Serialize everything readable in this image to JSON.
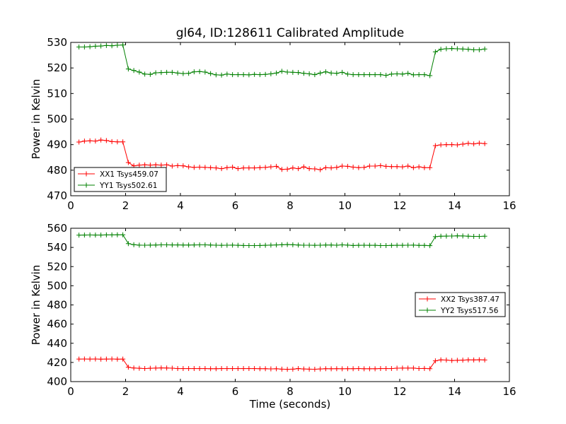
{
  "figure": {
    "title": "gl64, ID:128611 Calibrated Amplitude"
  },
  "chart_data": [
    {
      "type": "line",
      "title": "gl64, ID:128611 Calibrated Amplitude",
      "xlabel": "",
      "ylabel": "Power in Kelvin",
      "xlim": [
        0,
        16
      ],
      "ylim": [
        470,
        530
      ],
      "xticks": [
        0,
        2,
        4,
        6,
        8,
        10,
        12,
        14,
        16
      ],
      "yticks": [
        470,
        480,
        490,
        500,
        510,
        520,
        530
      ],
      "legend_position": "lower-left",
      "series": [
        {
          "name": "XX1 Tsys459.07",
          "color": "#ff0000",
          "x": [
            0.3,
            0.5,
            0.7,
            0.9,
            1.1,
            1.3,
            1.5,
            1.7,
            1.9,
            2.1,
            2.3,
            2.5,
            2.7,
            2.9,
            3.1,
            3.3,
            3.5,
            3.7,
            3.9,
            4.1,
            4.3,
            4.5,
            4.7,
            4.9,
            5.1,
            5.3,
            5.5,
            5.7,
            5.9,
            6.1,
            6.3,
            6.5,
            6.7,
            6.9,
            7.1,
            7.3,
            7.5,
            7.7,
            7.9,
            8.1,
            8.3,
            8.5,
            8.7,
            8.9,
            9.1,
            9.3,
            9.5,
            9.7,
            9.9,
            10.1,
            10.3,
            10.5,
            10.7,
            10.9,
            11.1,
            11.3,
            11.5,
            11.7,
            11.9,
            12.1,
            12.3,
            12.5,
            12.7,
            12.9,
            13.1,
            13.3,
            13.5,
            13.7,
            13.9,
            14.1,
            14.3,
            14.5,
            14.7,
            14.9,
            15.1
          ],
          "y": [
            491.0,
            491.4,
            491.5,
            491.4,
            491.8,
            491.6,
            491.2,
            491.1,
            491.1,
            483.0,
            481.7,
            482.0,
            482.1,
            482.0,
            482.1,
            482.0,
            482.1,
            481.6,
            481.8,
            481.7,
            481.3,
            481.1,
            481.2,
            481.1,
            481.0,
            480.9,
            480.6,
            481.0,
            481.2,
            480.6,
            480.9,
            480.9,
            480.9,
            481.0,
            481.1,
            481.3,
            481.5,
            480.3,
            480.4,
            480.9,
            480.6,
            481.3,
            480.6,
            480.5,
            480.2,
            481.0,
            480.9,
            481.1,
            481.6,
            481.5,
            481.2,
            481.0,
            481.1,
            481.6,
            481.6,
            481.8,
            481.5,
            481.4,
            481.4,
            481.3,
            481.6,
            481.0,
            481.3,
            481.0,
            481.0,
            489.6,
            489.9,
            490.0,
            490.0,
            489.9,
            490.2,
            490.5,
            490.3,
            490.6,
            490.4
          ]
        },
        {
          "name": "YY1 Tsys502.61",
          "color": "#008000",
          "x": [
            0.3,
            0.5,
            0.7,
            0.9,
            1.1,
            1.3,
            1.5,
            1.7,
            1.9,
            2.1,
            2.3,
            2.5,
            2.7,
            2.9,
            3.1,
            3.3,
            3.5,
            3.7,
            3.9,
            4.1,
            4.3,
            4.5,
            4.7,
            4.9,
            5.1,
            5.3,
            5.5,
            5.7,
            5.9,
            6.1,
            6.3,
            6.5,
            6.7,
            6.9,
            7.1,
            7.3,
            7.5,
            7.7,
            7.9,
            8.1,
            8.3,
            8.5,
            8.7,
            8.9,
            9.1,
            9.3,
            9.5,
            9.7,
            9.9,
            10.1,
            10.3,
            10.5,
            10.7,
            10.9,
            11.1,
            11.3,
            11.5,
            11.7,
            11.9,
            12.1,
            12.3,
            12.5,
            12.7,
            12.9,
            13.1,
            13.3,
            13.5,
            13.7,
            13.9,
            14.1,
            14.3,
            14.5,
            14.7,
            14.9,
            15.1
          ],
          "y": [
            528.2,
            528.2,
            528.3,
            528.5,
            528.6,
            528.8,
            528.7,
            528.9,
            529.0,
            519.6,
            519.0,
            518.4,
            517.6,
            517.5,
            518.1,
            518.2,
            518.3,
            518.3,
            518.0,
            517.8,
            517.9,
            518.5,
            518.6,
            518.4,
            517.8,
            517.3,
            517.2,
            517.6,
            517.4,
            517.4,
            517.4,
            517.3,
            517.5,
            517.4,
            517.5,
            517.7,
            518.0,
            518.7,
            518.4,
            518.3,
            518.2,
            517.9,
            517.7,
            517.4,
            518.0,
            518.5,
            518.0,
            517.9,
            518.3,
            517.6,
            517.4,
            517.4,
            517.4,
            517.4,
            517.4,
            517.4,
            517.1,
            517.6,
            517.7,
            517.6,
            517.9,
            517.3,
            517.4,
            517.4,
            517.0,
            526.3,
            527.3,
            527.5,
            527.6,
            527.5,
            527.4,
            527.3,
            527.1,
            527.1,
            527.4
          ]
        }
      ]
    },
    {
      "type": "line",
      "title": "",
      "xlabel": "Time (seconds)",
      "ylabel": "Power in Kelvin",
      "xlim": [
        0,
        16
      ],
      "ylim": [
        400,
        560
      ],
      "xticks": [
        0,
        2,
        4,
        6,
        8,
        10,
        12,
        14,
        16
      ],
      "yticks": [
        400,
        420,
        440,
        460,
        480,
        500,
        520,
        540,
        560
      ],
      "legend_position": "center-right",
      "series": [
        {
          "name": "XX2 Tsys387.47",
          "color": "#ff0000",
          "x": [
            0.3,
            0.5,
            0.7,
            0.9,
            1.1,
            1.3,
            1.5,
            1.7,
            1.9,
            2.1,
            2.3,
            2.5,
            2.7,
            2.9,
            3.1,
            3.3,
            3.5,
            3.7,
            3.9,
            4.1,
            4.3,
            4.5,
            4.7,
            4.9,
            5.1,
            5.3,
            5.5,
            5.7,
            5.9,
            6.1,
            6.3,
            6.5,
            6.7,
            6.9,
            7.1,
            7.3,
            7.5,
            7.7,
            7.9,
            8.1,
            8.3,
            8.5,
            8.7,
            8.9,
            9.1,
            9.3,
            9.5,
            9.7,
            9.9,
            10.1,
            10.3,
            10.5,
            10.7,
            10.9,
            11.1,
            11.3,
            11.5,
            11.7,
            11.9,
            12.1,
            12.3,
            12.5,
            12.7,
            12.9,
            13.1,
            13.3,
            13.5,
            13.7,
            13.9,
            14.1,
            14.3,
            14.5,
            14.7,
            14.9,
            15.1
          ],
          "y": [
            423.5,
            423.6,
            423.5,
            423.6,
            423.4,
            423.5,
            423.6,
            423.4,
            423.5,
            415.0,
            414.2,
            413.9,
            413.6,
            413.9,
            414.1,
            414.3,
            414.2,
            414.0,
            413.6,
            413.6,
            413.6,
            413.6,
            413.6,
            413.6,
            413.5,
            413.5,
            413.6,
            413.6,
            413.6,
            413.6,
            413.6,
            413.6,
            413.6,
            413.5,
            413.5,
            413.3,
            413.4,
            413.0,
            412.8,
            413.0,
            413.6,
            413.2,
            413.0,
            412.9,
            413.2,
            413.5,
            413.4,
            413.5,
            413.4,
            413.5,
            413.5,
            413.6,
            413.4,
            413.4,
            413.4,
            413.6,
            413.6,
            413.6,
            414.0,
            414.1,
            414.1,
            414.1,
            413.6,
            413.7,
            413.5,
            421.7,
            422.7,
            422.5,
            422.0,
            422.2,
            422.4,
            422.7,
            422.6,
            422.8,
            422.6
          ]
        },
        {
          "name": "YY2 Tsys517.56",
          "color": "#008000",
          "x": [
            0.3,
            0.5,
            0.7,
            0.9,
            1.1,
            1.3,
            1.5,
            1.7,
            1.9,
            2.1,
            2.3,
            2.5,
            2.7,
            2.9,
            3.1,
            3.3,
            3.5,
            3.7,
            3.9,
            4.1,
            4.3,
            4.5,
            4.7,
            4.9,
            5.1,
            5.3,
            5.5,
            5.7,
            5.9,
            6.1,
            6.3,
            6.5,
            6.7,
            6.9,
            7.1,
            7.3,
            7.5,
            7.7,
            7.9,
            8.1,
            8.3,
            8.5,
            8.7,
            8.9,
            9.1,
            9.3,
            9.5,
            9.7,
            9.9,
            10.1,
            10.3,
            10.5,
            10.7,
            10.9,
            11.1,
            11.3,
            11.5,
            11.7,
            11.9,
            12.1,
            12.3,
            12.5,
            12.7,
            12.9,
            13.1,
            13.3,
            13.5,
            13.7,
            13.9,
            14.1,
            14.3,
            14.5,
            14.7,
            14.9,
            15.1
          ],
          "y": [
            552.8,
            552.9,
            553.0,
            552.9,
            552.9,
            553.1,
            553.1,
            553.2,
            553.2,
            544.0,
            542.9,
            542.4,
            542.3,
            542.4,
            542.5,
            542.7,
            542.7,
            542.6,
            542.6,
            542.5,
            542.5,
            542.6,
            542.7,
            542.7,
            542.5,
            542.3,
            542.2,
            542.3,
            542.4,
            542.2,
            542.0,
            541.9,
            541.9,
            542.0,
            542.2,
            542.4,
            542.6,
            542.8,
            543.0,
            542.8,
            542.5,
            542.3,
            542.3,
            542.2,
            542.3,
            542.5,
            542.5,
            542.3,
            542.7,
            542.4,
            542.0,
            542.2,
            542.3,
            542.2,
            542.2,
            541.9,
            541.9,
            542.1,
            542.2,
            542.2,
            542.3,
            542.4,
            542.1,
            542.1,
            541.8,
            551.2,
            551.7,
            551.8,
            551.9,
            552.1,
            552.0,
            551.7,
            551.5,
            551.5,
            551.7
          ]
        }
      ]
    }
  ]
}
